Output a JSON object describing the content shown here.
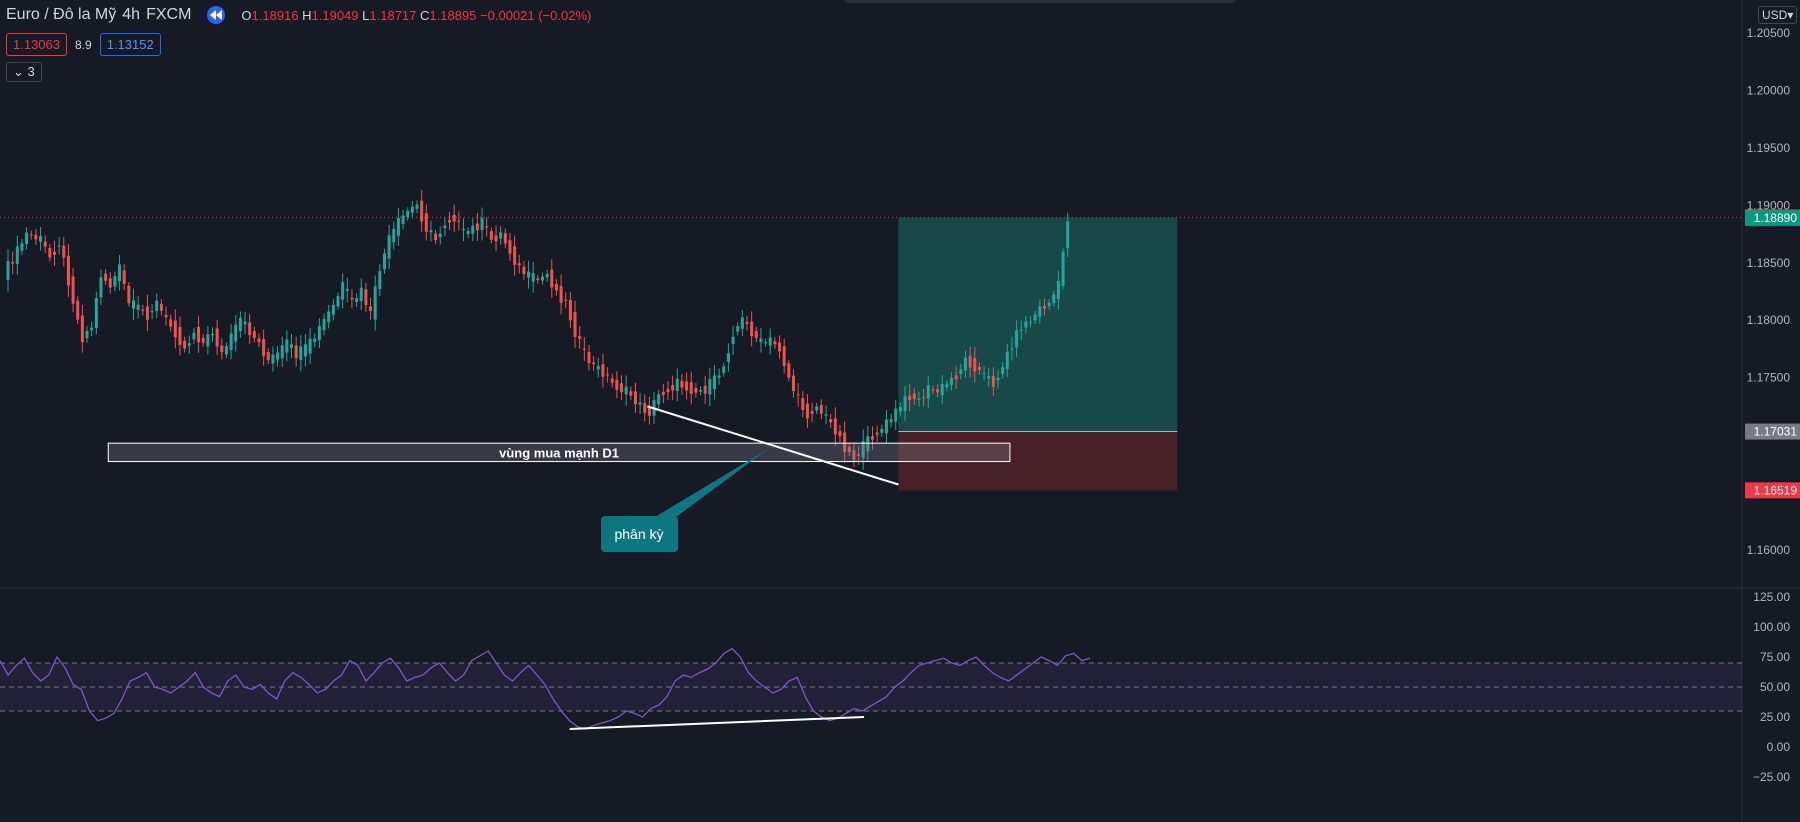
{
  "header": {
    "symbol": "Euro / Đô la Mỹ",
    "interval": "4h",
    "exchange": "FXCM",
    "o_label": "O",
    "o_value": "1.18916",
    "h_label": "H",
    "h_value": "1.19049",
    "l_label": "L",
    "l_value": "1.18717",
    "c_label": "C",
    "c_value": "1.18895",
    "change": "−0.00021 (−0.02%)",
    "sell_price": "1.13063",
    "spread": "8.9",
    "buy_price": "1.13152",
    "indicator_count": "3",
    "currency": "USD"
  },
  "colors": {
    "background": "#161a25",
    "bull": "#26a69a",
    "bear": "#ef5350",
    "rsi_line": "#7e57c2",
    "target_zone": "#1a5a55",
    "stop_zone": "#5a2328"
  },
  "chart_data": [
    {
      "type": "candlestick",
      "title": "Euro / Đô la Mỹ",
      "y_ticks": [
        "1.20500",
        "1.20000",
        "1.19500",
        "1.19000",
        "1.18500",
        "1.18000",
        "1.17500",
        "1.17000",
        "1.16500",
        "1.16000"
      ],
      "y_range": [
        1.1565,
        1.2065
      ],
      "x_range": [
        0,
        230
      ],
      "price_labels": [
        {
          "text": "1.18895",
          "value": 1.18895,
          "color": "#f23645"
        },
        {
          "text": "1.18890",
          "value": 1.1889,
          "color": "#089981"
        },
        {
          "text": "1.17031",
          "value": 1.17031,
          "color": "#787b86"
        },
        {
          "text": "1.16519",
          "value": 1.16519,
          "color": "#f23645"
        }
      ],
      "last_price": 1.18895,
      "series_close": [
        [
          0,
          1.184
        ],
        [
          3,
          1.186
        ],
        [
          5,
          1.1875
        ],
        [
          8,
          1.187
        ],
        [
          10,
          1.1855
        ],
        [
          12,
          1.1868
        ],
        [
          14,
          1.1835
        ],
        [
          16,
          1.18
        ],
        [
          17,
          1.1785
        ],
        [
          19,
          1.1795
        ],
        [
          21,
          1.184
        ],
        [
          23,
          1.183
        ],
        [
          25,
          1.1845
        ],
        [
          27,
          1.1815
        ],
        [
          29,
          1.181
        ],
        [
          31,
          1.1805
        ],
        [
          33,
          1.1815
        ],
        [
          35,
          1.18
        ],
        [
          37,
          1.179
        ],
        [
          39,
          1.1775
        ],
        [
          41,
          1.179
        ],
        [
          43,
          1.178
        ],
        [
          45,
          1.179
        ],
        [
          47,
          1.177
        ],
        [
          49,
          1.1785
        ],
        [
          51,
          1.18
        ],
        [
          53,
          1.179
        ],
        [
          55,
          1.178
        ],
        [
          57,
          1.1765
        ],
        [
          59,
          1.177
        ],
        [
          61,
          1.178
        ],
        [
          63,
          1.177
        ],
        [
          65,
          1.1775
        ],
        [
          67,
          1.1785
        ],
        [
          69,
          1.18
        ],
        [
          71,
          1.1812
        ],
        [
          73,
          1.183
        ],
        [
          75,
          1.1815
        ],
        [
          77,
          1.1825
        ],
        [
          79,
          1.1805
        ],
        [
          81,
          1.1845
        ],
        [
          83,
          1.187
        ],
        [
          85,
          1.1885
        ],
        [
          87,
          1.1895
        ],
        [
          89,
          1.19
        ],
        [
          91,
          1.188
        ],
        [
          93,
          1.187
        ],
        [
          95,
          1.1885
        ],
        [
          97,
          1.189
        ],
        [
          99,
          1.1875
        ],
        [
          101,
          1.188
        ],
        [
          103,
          1.1885
        ],
        [
          105,
          1.187
        ],
        [
          107,
          1.1875
        ],
        [
          109,
          1.186
        ],
        [
          111,
          1.1845
        ],
        [
          113,
          1.1838
        ],
        [
          115,
          1.1835
        ],
        [
          117,
          1.184
        ],
        [
          119,
          1.1825
        ],
        [
          121,
          1.1815
        ],
        [
          123,
          1.179
        ],
        [
          125,
          1.177
        ],
        [
          127,
          1.176
        ],
        [
          129,
          1.1755
        ],
        [
          131,
          1.1745
        ],
        [
          133,
          1.174
        ],
        [
          135,
          1.1735
        ],
        [
          137,
          1.1725
        ],
        [
          139,
          1.172
        ],
        [
          141,
          1.1735
        ],
        [
          143,
          1.174
        ],
        [
          145,
          1.1745
        ],
        [
          147,
          1.1742
        ],
        [
          149,
          1.1738
        ],
        [
          151,
          1.174
        ],
        [
          153,
          1.1748
        ],
        [
          155,
          1.176
        ],
        [
          157,
          1.179
        ],
        [
          159,
          1.18
        ],
        [
          161,
          1.179
        ],
        [
          163,
          1.178
        ],
        [
          165,
          1.1782
        ],
        [
          167,
          1.1775
        ],
        [
          169,
          1.175
        ],
        [
          171,
          1.173
        ],
        [
          173,
          1.1718
        ],
        [
          175,
          1.1725
        ],
        [
          177,
          1.1715
        ],
        [
          179,
          1.1705
        ],
        [
          181,
          1.169
        ],
        [
          183,
          1.168
        ],
        [
          185,
          1.169
        ],
        [
          187,
          1.17
        ],
        [
          189,
          1.1705
        ],
        [
          191,
          1.1715
        ],
        [
          193,
          1.1725
        ],
        [
          195,
          1.1735
        ],
        [
          197,
          1.173
        ],
        [
          199,
          1.174
        ],
        [
          201,
          1.1738
        ],
        [
          203,
          1.1745
        ],
        [
          205,
          1.1752
        ],
        [
          207,
          1.1765
        ],
        [
          209,
          1.176
        ],
        [
          211,
          1.1752
        ],
        [
          213,
          1.1745
        ],
        [
          215,
          1.176
        ],
        [
          217,
          1.178
        ],
        [
          219,
          1.1795
        ],
        [
          221,
          1.18
        ],
        [
          223,
          1.181
        ],
        [
          225,
          1.1815
        ],
        [
          227,
          1.183
        ],
        [
          229,
          1.1889
        ]
      ],
      "divergence_line": {
        "from": {
          "x": 138,
          "y": 1.1725
        },
        "to": {
          "x": 192,
          "y": 1.1657
        }
      },
      "zone": {
        "label": "vùng mua mạnh D1",
        "x_from": 22,
        "x_to": 216,
        "y_top": 1.1693,
        "y_bottom": 1.1677
      },
      "annotation": {
        "label": "phân kỳ",
        "anchor": {
          "x": 164,
          "y": 1.1688
        }
      },
      "position": {
        "x_from": 192,
        "x_to": 252,
        "entry": 1.17031,
        "target": 1.18895,
        "stop": 1.16519
      }
    },
    {
      "type": "line",
      "title": "RSI",
      "y_ticks": [
        "125.00",
        "100.00",
        "75.00",
        "50.00",
        "25.00",
        "0.00",
        "−25.00"
      ],
      "y_range": [
        -35,
        130
      ],
      "bands": {
        "upper": 70,
        "middle": 50,
        "lower": 30
      },
      "series": [
        {
          "values": [
            72,
            60,
            68,
            74,
            62,
            55,
            60,
            75,
            66,
            52,
            48,
            30,
            22,
            24,
            28,
            40,
            55,
            58,
            62,
            50,
            48,
            45,
            50,
            55,
            62,
            50,
            45,
            42,
            55,
            60,
            50,
            48,
            52,
            45,
            40,
            55,
            62,
            58,
            52,
            45,
            48,
            55,
            60,
            72,
            68,
            55,
            62,
            70,
            74,
            66,
            55,
            58,
            60,
            66,
            70,
            62,
            55,
            60,
            72,
            76,
            80,
            70,
            60,
            55,
            62,
            68,
            60,
            52,
            40,
            30,
            22,
            17,
            15,
            18,
            20,
            22,
            25,
            30,
            28,
            25,
            32,
            35,
            42,
            55,
            60,
            58,
            62,
            65,
            70,
            78,
            82,
            75,
            62,
            55,
            50,
            45,
            48,
            55,
            58,
            42,
            30,
            25,
            22,
            24,
            28,
            32,
            30,
            34,
            38,
            42,
            50,
            55,
            62,
            68,
            70,
            72,
            74,
            70,
            68,
            72,
            75,
            68,
            62,
            58,
            55,
            60,
            65,
            70,
            75,
            72,
            68,
            76,
            78,
            72,
            74
          ]
        }
      ],
      "trend_line": {
        "from": {
          "x": 0.327,
          "y": 15
        },
        "to": {
          "x": 0.496,
          "y": 25
        }
      }
    }
  ]
}
